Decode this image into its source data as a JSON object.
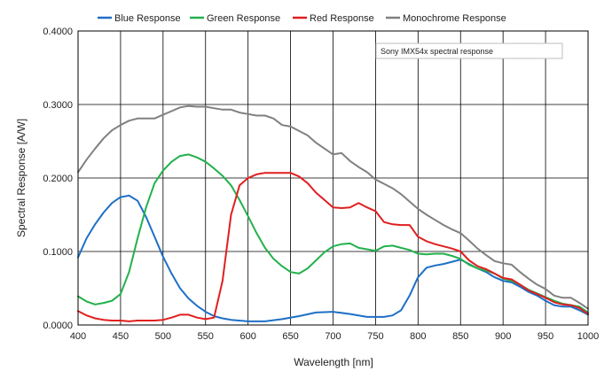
{
  "chart_data": {
    "type": "line",
    "xlabel": "Wavelength [nm]",
    "ylabel": "Spectral Response [A/W]",
    "xlim": [
      400,
      1000
    ],
    "ylim": [
      0,
      0.4
    ],
    "x_ticks": [
      400,
      450,
      500,
      550,
      600,
      650,
      700,
      750,
      800,
      850,
      900,
      950,
      1000
    ],
    "y_ticks": [
      0,
      0.1,
      0.2,
      0.3,
      0.4
    ],
    "y_tick_labels": [
      "0.0000",
      "0.1000",
      "0.2000",
      "0.3000",
      "0.4000"
    ],
    "grid": true,
    "legend_position": "top",
    "annotation": "Sony IMX54x spectral response",
    "series": [
      {
        "name": "Blue Response",
        "color": "#1f6fc6",
        "x": [
          400,
          410,
          420,
          430,
          440,
          450,
          460,
          470,
          480,
          490,
          500,
          510,
          520,
          530,
          540,
          550,
          560,
          570,
          580,
          600,
          620,
          640,
          660,
          680,
          700,
          720,
          740,
          760,
          770,
          780,
          790,
          800,
          810,
          820,
          830,
          840,
          850,
          860,
          870,
          880,
          890,
          900,
          910,
          920,
          930,
          940,
          950,
          960,
          970,
          980,
          990,
          1000
        ],
        "y": [
          0.092,
          0.118,
          0.137,
          0.153,
          0.166,
          0.174,
          0.176,
          0.169,
          0.147,
          0.12,
          0.093,
          0.07,
          0.05,
          0.036,
          0.026,
          0.018,
          0.012,
          0.009,
          0.007,
          0.005,
          0.005,
          0.008,
          0.012,
          0.017,
          0.018,
          0.015,
          0.011,
          0.011,
          0.013,
          0.02,
          0.04,
          0.065,
          0.078,
          0.081,
          0.083,
          0.086,
          0.089,
          0.083,
          0.077,
          0.072,
          0.065,
          0.06,
          0.058,
          0.052,
          0.045,
          0.04,
          0.033,
          0.027,
          0.025,
          0.025,
          0.02,
          0.014
        ]
      },
      {
        "name": "Green Response",
        "color": "#22b14c",
        "x": [
          400,
          410,
          420,
          430,
          440,
          450,
          460,
          470,
          480,
          490,
          500,
          510,
          520,
          530,
          540,
          550,
          560,
          570,
          580,
          590,
          600,
          610,
          620,
          630,
          640,
          650,
          660,
          670,
          680,
          690,
          700,
          710,
          720,
          730,
          740,
          750,
          760,
          770,
          780,
          790,
          800,
          810,
          820,
          830,
          840,
          850,
          860,
          870,
          880,
          890,
          900,
          910,
          920,
          930,
          940,
          950,
          960,
          970,
          980,
          990,
          1000
        ],
        "y": [
          0.039,
          0.032,
          0.028,
          0.03,
          0.033,
          0.042,
          0.072,
          0.118,
          0.16,
          0.193,
          0.21,
          0.222,
          0.23,
          0.232,
          0.228,
          0.222,
          0.213,
          0.203,
          0.19,
          0.17,
          0.148,
          0.125,
          0.105,
          0.09,
          0.08,
          0.072,
          0.07,
          0.077,
          0.088,
          0.099,
          0.107,
          0.11,
          0.111,
          0.105,
          0.103,
          0.101,
          0.107,
          0.108,
          0.105,
          0.102,
          0.097,
          0.096,
          0.097,
          0.097,
          0.094,
          0.09,
          0.082,
          0.077,
          0.074,
          0.07,
          0.063,
          0.06,
          0.055,
          0.048,
          0.043,
          0.038,
          0.033,
          0.029,
          0.027,
          0.025,
          0.017
        ]
      },
      {
        "name": "Red Response",
        "color": "#e11e1e",
        "x": [
          400,
          410,
          420,
          430,
          440,
          450,
          460,
          470,
          480,
          490,
          500,
          510,
          520,
          530,
          540,
          550,
          560,
          570,
          580,
          590,
          600,
          610,
          620,
          630,
          640,
          650,
          660,
          670,
          680,
          690,
          700,
          710,
          720,
          730,
          740,
          750,
          760,
          770,
          780,
          790,
          800,
          810,
          820,
          830,
          840,
          850,
          860,
          870,
          880,
          890,
          900,
          910,
          920,
          930,
          940,
          950,
          960,
          970,
          980,
          990,
          1000
        ],
        "y": [
          0.019,
          0.013,
          0.009,
          0.007,
          0.006,
          0.006,
          0.005,
          0.006,
          0.006,
          0.006,
          0.007,
          0.01,
          0.014,
          0.014,
          0.01,
          0.008,
          0.01,
          0.06,
          0.15,
          0.19,
          0.2,
          0.205,
          0.207,
          0.207,
          0.207,
          0.207,
          0.202,
          0.193,
          0.18,
          0.17,
          0.16,
          0.159,
          0.16,
          0.166,
          0.16,
          0.155,
          0.14,
          0.137,
          0.136,
          0.136,
          0.12,
          0.114,
          0.11,
          0.107,
          0.104,
          0.1,
          0.088,
          0.08,
          0.076,
          0.07,
          0.064,
          0.062,
          0.055,
          0.047,
          0.042,
          0.037,
          0.031,
          0.028,
          0.027,
          0.023,
          0.015
        ]
      },
      {
        "name": "Monochrome Response",
        "color": "#808080",
        "x": [
          400,
          410,
          420,
          430,
          440,
          450,
          460,
          470,
          480,
          490,
          500,
          510,
          520,
          530,
          540,
          550,
          560,
          570,
          580,
          590,
          600,
          610,
          620,
          630,
          640,
          650,
          660,
          670,
          680,
          690,
          700,
          710,
          720,
          730,
          740,
          750,
          760,
          770,
          780,
          790,
          800,
          810,
          820,
          830,
          840,
          850,
          860,
          870,
          880,
          890,
          900,
          910,
          920,
          930,
          940,
          950,
          960,
          970,
          980,
          990,
          1000
        ],
        "y": [
          0.208,
          0.225,
          0.24,
          0.254,
          0.265,
          0.272,
          0.278,
          0.281,
          0.281,
          0.281,
          0.286,
          0.291,
          0.296,
          0.298,
          0.297,
          0.297,
          0.295,
          0.293,
          0.293,
          0.289,
          0.287,
          0.285,
          0.285,
          0.281,
          0.272,
          0.27,
          0.264,
          0.258,
          0.248,
          0.24,
          0.232,
          0.234,
          0.223,
          0.215,
          0.208,
          0.198,
          0.192,
          0.186,
          0.178,
          0.168,
          0.158,
          0.15,
          0.143,
          0.136,
          0.13,
          0.125,
          0.115,
          0.104,
          0.095,
          0.087,
          0.084,
          0.082,
          0.072,
          0.063,
          0.055,
          0.049,
          0.04,
          0.037,
          0.037,
          0.03,
          0.022
        ]
      }
    ]
  }
}
